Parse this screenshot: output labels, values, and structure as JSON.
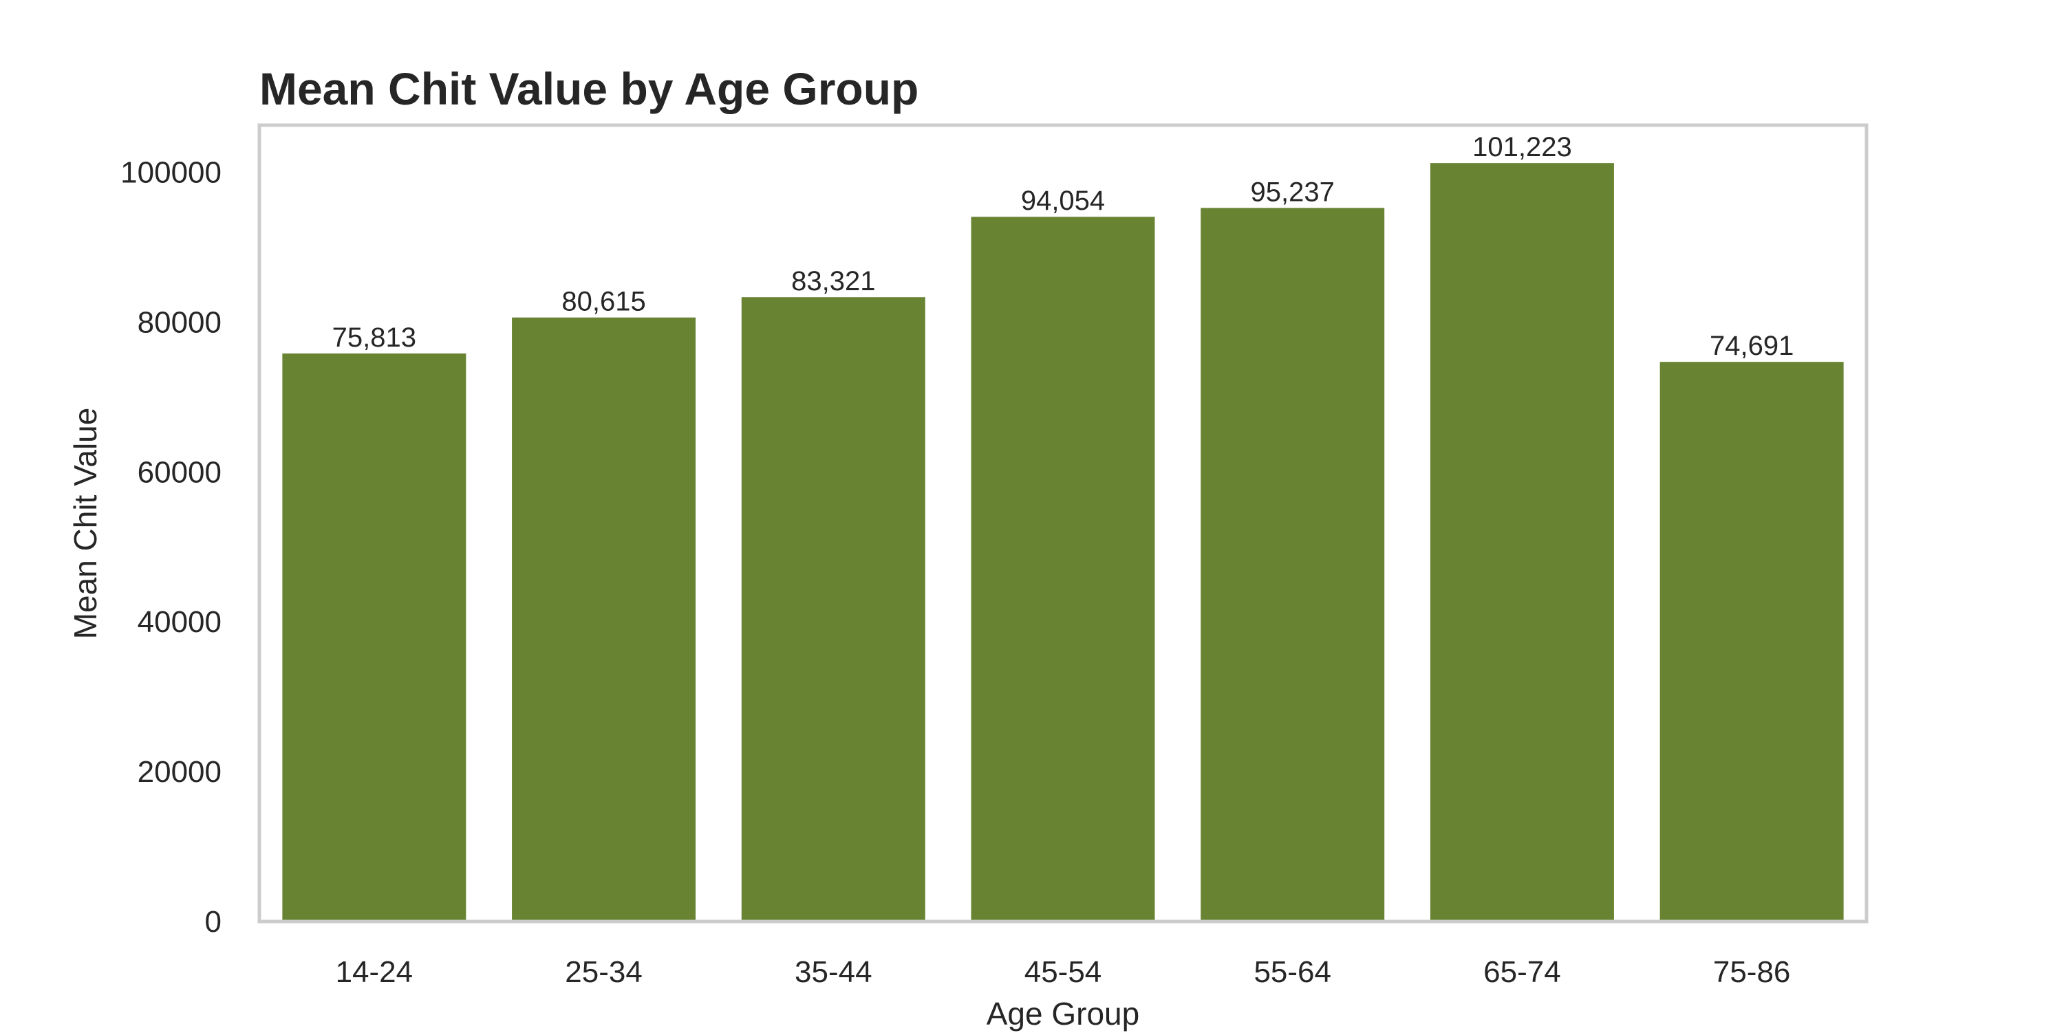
{
  "chart_data": {
    "type": "bar",
    "title": "Mean Chit Value by Age Group",
    "xlabel": "Age Group",
    "ylabel": "Mean Chit Value",
    "categories": [
      "14-24",
      "25-34",
      "35-44",
      "45-54",
      "55-64",
      "65-74",
      "75-86"
    ],
    "values": [
      75813,
      80615,
      83321,
      94054,
      95237,
      101223,
      74691
    ],
    "value_labels": [
      "75,813",
      "80,615",
      "83,321",
      "94,054",
      "95,237",
      "101,223",
      "74,691"
    ],
    "yticks": [
      0,
      20000,
      40000,
      60000,
      80000,
      100000
    ],
    "ylim": [
      0,
      106284
    ],
    "grid": false,
    "bar_color": "#688432",
    "frame_color": "#cccccc"
  }
}
